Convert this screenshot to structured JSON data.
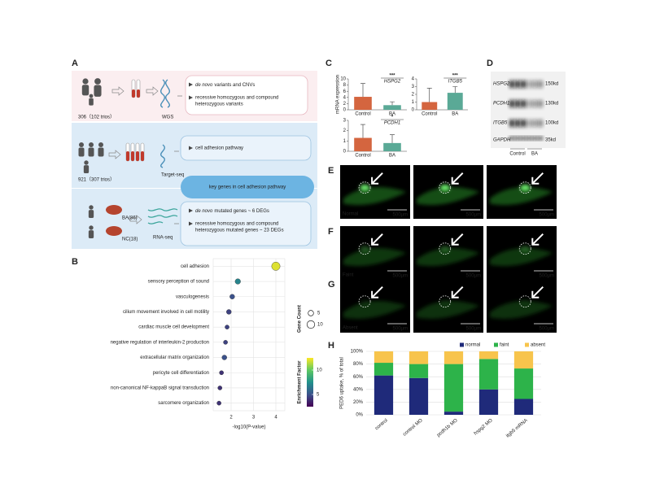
{
  "panel_letters": [
    "A",
    "B",
    "C",
    "D",
    "E",
    "F",
    "G",
    "H"
  ],
  "panel_a": {
    "rows": [
      {
        "counts": [
          "306（102 trios）"
        ],
        "method": "WGS",
        "findings": [
          {
            "em": "de novo",
            "text": "variants and CNVs"
          },
          {
            "lines": [
              "recessive homozygous and compound",
              "heterozygous variants"
            ]
          }
        ]
      },
      {
        "counts": [
          "921（307 trios）"
        ],
        "method": "Target-seq",
        "findings": [
          {
            "lines": [
              "cell adhesion pathway"
            ]
          }
        ]
      },
      {
        "counts": [
          "BA(86)",
          "NC(18)"
        ],
        "method": "RNA-seq",
        "findings": [
          {
            "em": "de novo",
            "text": "mutated genes ~ 6 DEGs"
          },
          {
            "lines": [
              "recessive homozygous and compound",
              "heterozygous mutated genes ~ 23 DEGs"
            ]
          }
        ]
      }
    ],
    "key_box": "key genes in cell adhesion pathway"
  },
  "chart_data": [
    {
      "type": "dot",
      "x_label": "-log10(P-value)",
      "categories": [
        "cell adhesion",
        "sensory perception of sound",
        "vasculogenesis",
        "cilium movement involved in cell motility",
        "cardiac muscle cell development",
        "negative regulation of interleukin-2 production",
        "extracellular matrix organization",
        "pericyte cell differentiation",
        "non-canonical NF-kappaB signal transduction",
        "sarcomere organization"
      ],
      "values": [
        4.0,
        2.3,
        2.05,
        1.9,
        1.82,
        1.75,
        1.7,
        1.57,
        1.5,
        1.46
      ],
      "sizes": [
        12,
        5,
        4,
        4,
        3,
        3,
        4,
        3,
        3,
        3
      ],
      "color_values": [
        12,
        7,
        5,
        4.5,
        4.5,
        4.5,
        5,
        4,
        4,
        4
      ],
      "xlim": [
        1.2,
        4.4
      ],
      "xticks": [
        2,
        3,
        4
      ],
      "grid": true,
      "size_label": "Gene Count",
      "size_ticks": [
        5,
        10
      ],
      "color_label": "Enrichment Factor",
      "color_ticks": [
        5,
        10
      ],
      "color_lim": [
        2.5,
        12.5
      ],
      "colormap": [
        "#440154",
        "#3b528b",
        "#21918c",
        "#5ec962",
        "#fde725"
      ]
    },
    {
      "type": "bar_error",
      "categories": [
        "Control",
        "BA"
      ],
      "values": [
        4.2,
        1.5
      ],
      "errors": [
        4.3,
        1.1
      ],
      "colors": [
        "#d4653f",
        "#5aa996"
      ],
      "ylim": [
        0,
        10
      ],
      "yticks": [
        0,
        2,
        4,
        6,
        8,
        10
      ],
      "y_label": "mRNA expression",
      "gene": "HSPG2",
      "significance": "***"
    },
    {
      "type": "bar_error",
      "categories": [
        "Control",
        "BA"
      ],
      "values": [
        1.0,
        2.2
      ],
      "errors": [
        1.8,
        0.8
      ],
      "colors": [
        "#d4653f",
        "#5aa996"
      ],
      "ylim": [
        0,
        4
      ],
      "yticks": [
        0,
        1,
        2,
        3,
        4
      ],
      "gene": "ITGB5",
      "significance": "***"
    },
    {
      "type": "bar_error",
      "categories": [
        "Control",
        "BA"
      ],
      "values": [
        1.3,
        0.8
      ],
      "errors": [
        1.3,
        0.8
      ],
      "colors": [
        "#d4653f",
        "#5aa996"
      ],
      "ylim": [
        0,
        3
      ],
      "yticks": [
        0,
        1,
        2,
        3
      ],
      "gene": "PCDH1",
      "significance": "*"
    },
    {
      "type": "stacked_bar",
      "y_label": "PED6 uptake, % of total",
      "categories": [
        "control",
        "control MO",
        "pcdh1b MO",
        "hspg2 MO",
        "itgb5 mRNA"
      ],
      "series": [
        {
          "name": "normal",
          "color": "#1f2a7a",
          "values": [
            62,
            58,
            5,
            40,
            25
          ]
        },
        {
          "name": "faint",
          "color": "#2db34a",
          "values": [
            20,
            22,
            75,
            48,
            48
          ]
        },
        {
          "name": "absent",
          "color": "#f7c44c",
          "values": [
            18,
            20,
            20,
            12,
            27
          ]
        }
      ],
      "ylim": [
        0,
        100
      ],
      "yticks": [
        {
          "value": 0,
          "label": "0%"
        },
        {
          "value": 20,
          "label": "20%"
        },
        {
          "value": 40,
          "label": "40%"
        },
        {
          "value": 60,
          "label": "60%"
        },
        {
          "value": 80,
          "label": "80%"
        },
        {
          "value": 100,
          "label": "100%"
        }
      ],
      "grid": true,
      "legend": "top"
    }
  ],
  "panel_d": {
    "genes": [
      "HSPG2",
      "PCDH1",
      "ITGB5",
      "GAPDH"
    ],
    "sizes": [
      "150kd",
      "130kd",
      "100kd",
      "35kd"
    ],
    "groups": [
      "Control",
      "BA"
    ]
  },
  "panels_efg": {
    "rows": [
      "Normal",
      "Faint",
      "Absent"
    ],
    "scale": "500μm"
  }
}
